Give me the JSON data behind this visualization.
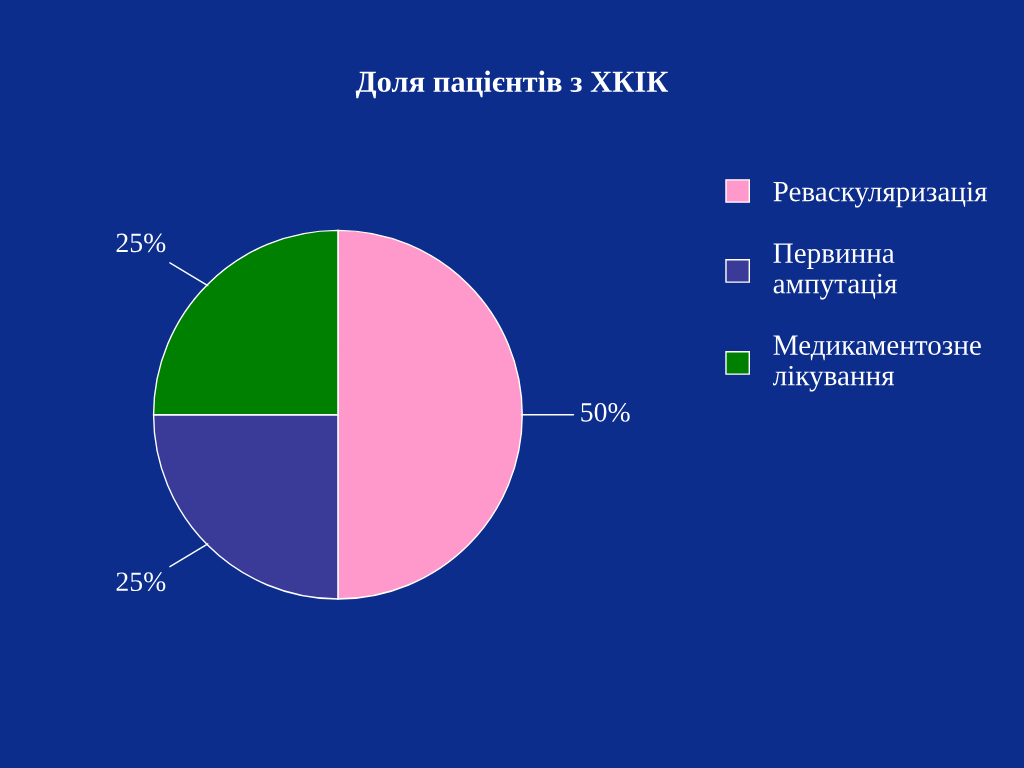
{
  "chart_data": {
    "type": "pie",
    "title": "Доля пацієнтів з ХКІК",
    "categories": [
      "Реваскуляризація",
      "Первинна ампутація",
      "Медикаментозне лікування"
    ],
    "values": [
      50,
      25,
      25
    ],
    "colors": [
      "#ff99cc",
      "#3a3a99",
      "#008000"
    ],
    "value_labels": [
      "50%",
      "25%",
      "25%"
    ],
    "legend": "top right"
  }
}
